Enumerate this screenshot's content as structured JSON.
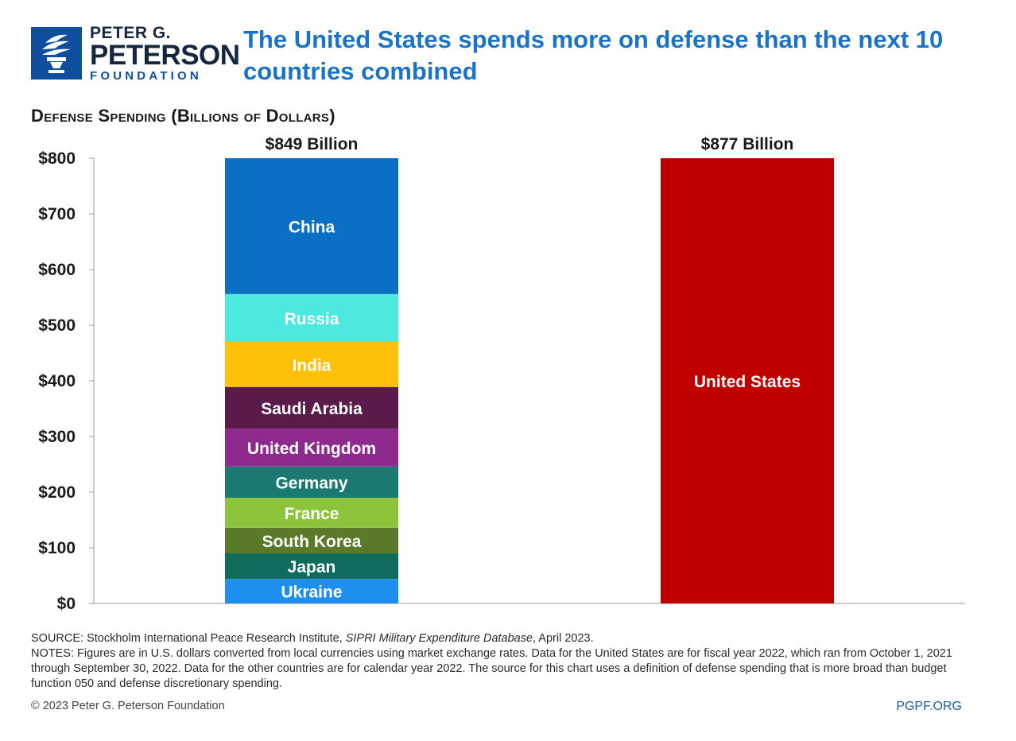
{
  "logo": {
    "line1": "PETER G.",
    "line2": "PETERSON",
    "line3": "FOUNDATION"
  },
  "title": "The United States spends more on defense than the next 10 countries combined",
  "subtitle": "Defense Spending (Billions of Dollars)",
  "chart_data": {
    "type": "bar",
    "ylim": [
      0,
      800
    ],
    "yticks": [
      "$0",
      "$100",
      "$200",
      "$300",
      "$400",
      "$500",
      "$600",
      "$700",
      "$800"
    ],
    "ytick_values": [
      0,
      100,
      200,
      300,
      400,
      500,
      600,
      700,
      800
    ],
    "bars": [
      {
        "total_label": "$849 Billion",
        "total": 849,
        "stacked": true,
        "segments": [
          {
            "name": "Ukraine",
            "value": 44,
            "color": "#1f8fef"
          },
          {
            "name": "Japan",
            "value": 46,
            "color": "#0f6b5c"
          },
          {
            "name": "South Korea",
            "value": 46,
            "color": "#5a7a2a"
          },
          {
            "name": "France",
            "value": 54,
            "color": "#8cc43c"
          },
          {
            "name": "Germany",
            "value": 56,
            "color": "#1a7a72"
          },
          {
            "name": "United Kingdom",
            "value": 68,
            "color": "#8e2a8e"
          },
          {
            "name": "Saudi Arabia",
            "value": 75,
            "color": "#5a1a4a"
          },
          {
            "name": "India",
            "value": 81,
            "color": "#ffc107"
          },
          {
            "name": "Russia",
            "value": 86,
            "color": "#4de8e0"
          },
          {
            "name": "China",
            "value": 293,
            "color": "#0b6fc3"
          }
        ]
      },
      {
        "total_label": "$877 Billion",
        "total": 877,
        "stacked": false,
        "segments": [
          {
            "name": "United States",
            "value": 877,
            "color": "#c00000"
          }
        ]
      }
    ]
  },
  "footer": {
    "source": "SOURCE: Stockholm International Peace Research Institute, ",
    "source_italic": "SIPRI Military Expenditure Database",
    "source_end": ", April 2023.",
    "notes": "NOTES: Figures are in U.S. dollars converted from local currencies using market exchange rates. Data for the United States are for fiscal year 2022, which ran from October 1, 2021 through September 30, 2022. Data for the other countries are for calendar year 2022. The source for this chart uses a definition of defense spending that is more broad than budget function 050 and defense discretionary spending.",
    "copyright": "© 2023 Peter G. Peterson Foundation",
    "site": "PGPF.ORG"
  }
}
